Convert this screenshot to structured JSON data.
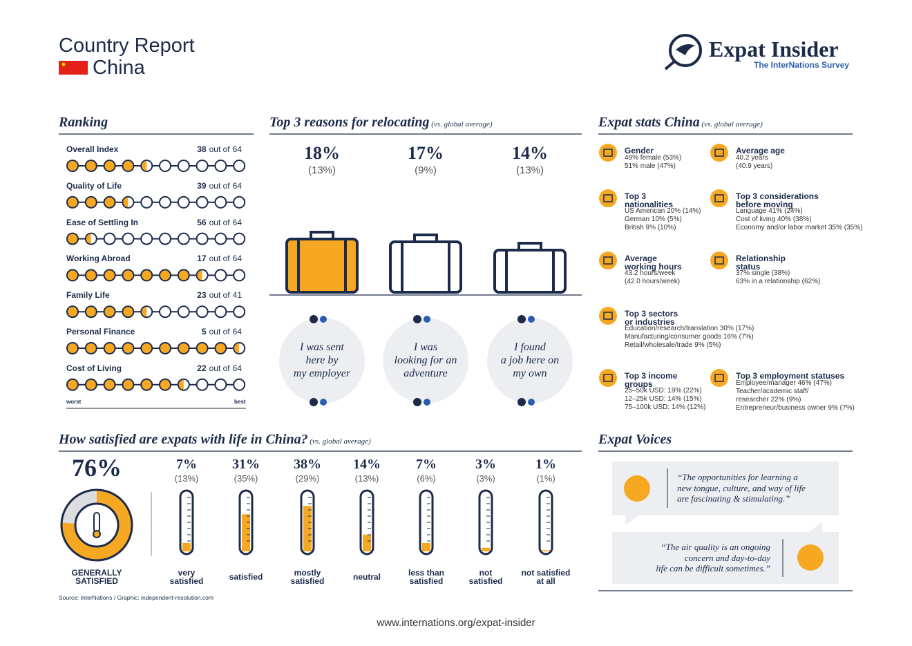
{
  "header": {
    "title": "Country Report",
    "country": "China",
    "brand": "Expat Insider",
    "tagline": "The InterNations Survey"
  },
  "ranking": {
    "heading": "Ranking",
    "of_label": "out of",
    "worst": "worst",
    "best": "best",
    "items": [
      {
        "label": "Overall Index",
        "rank": 38,
        "total": 64
      },
      {
        "label": "Quality of Life",
        "rank": 39,
        "total": 64
      },
      {
        "label": "Ease of Settling In",
        "rank": 56,
        "total": 64
      },
      {
        "label": "Working Abroad",
        "rank": 17,
        "total": 64
      },
      {
        "label": "Family Life",
        "rank": 23,
        "total": 41
      },
      {
        "label": "Personal Finance",
        "rank": 5,
        "total": 64
      },
      {
        "label": "Cost of Living",
        "rank": 22,
        "total": 64
      }
    ]
  },
  "reasons": {
    "heading": "Top 3 reasons for relocating",
    "note": "(vs. global average)",
    "items": [
      {
        "value": "18%",
        "global": "(13%)",
        "quote": [
          "I was sent",
          "here by",
          "my employer"
        ]
      },
      {
        "value": "17%",
        "global": "(9%)",
        "quote": [
          "I was",
          "looking for an",
          "adventure"
        ]
      },
      {
        "value": "14%",
        "global": "(13%)",
        "quote": [
          "I found",
          "a job here on",
          "my own"
        ]
      }
    ]
  },
  "stats": {
    "heading": "Expat stats China",
    "note": "(vs. global average)",
    "items": [
      {
        "title": [
          "Gender"
        ],
        "lines": [
          "49% female (53%)",
          "51% male (47%)"
        ]
      },
      {
        "title": [
          "Average age"
        ],
        "lines": [
          "40.2 years",
          "(40.9 years)"
        ]
      },
      {
        "title": [
          "Top 3",
          "nationalities"
        ],
        "lines": [
          "US American 20% (14%)",
          "German 10% (5%)",
          "British 9% (10%)"
        ]
      },
      {
        "title": [
          "Top 3 considerations",
          "before moving"
        ],
        "lines": [
          "Language 41% (24%)",
          "Cost of living 40% (38%)",
          "Economy and/or labor market 35% (35%)"
        ]
      },
      {
        "title": [
          "Average",
          "working hours"
        ],
        "lines": [
          "43.2 hours/week",
          "(42.0 hours/week)"
        ]
      },
      {
        "title": [
          "Relationship",
          "status"
        ],
        "lines": [
          "37% single (38%)",
          "63% in a relationship (62%)"
        ]
      },
      {
        "title": [
          "Top 3 sectors",
          "or industries"
        ],
        "lines": [
          "Education/research/translation 30% (17%)",
          "Manufacturing/consumer goods 16% (7%)",
          "Retail/wholesale/trade 9% (5%)"
        ]
      },
      {
        "title": [
          "Top 3 income",
          "groups"
        ],
        "lines": [
          "25–50k USD: 19% (22%)",
          "12–25k USD: 14% (15%)",
          "75–100k USD: 14% (12%)"
        ]
      },
      {
        "title": [
          "Top 3 employment statuses"
        ],
        "lines": [
          "Employee/manager 46% (47%)",
          "Teacher/academic staff/",
          "researcher 22% (9%)",
          "Entrepreneur/business owner 9% (7%)"
        ]
      }
    ]
  },
  "satisfaction": {
    "heading": "How satisfied are expats with life in China?",
    "note": "(vs. global average)",
    "overall": {
      "value": 76,
      "label": "76%",
      "caption": [
        "GENERALLY",
        "SATISFIED"
      ]
    },
    "categories": [
      [
        "very",
        "satisfied"
      ],
      [
        "satisfied"
      ],
      [
        "mostly",
        "satisfied"
      ],
      [
        "neutral"
      ],
      [
        "less than",
        "satisfied"
      ],
      [
        "not",
        "satisfied"
      ],
      [
        "not satisfied",
        "at all"
      ]
    ],
    "values": [
      7,
      31,
      38,
      14,
      7,
      3,
      1
    ],
    "value_labels": [
      "7%",
      "31%",
      "38%",
      "14%",
      "7%",
      "3%",
      "1%"
    ],
    "global_labels": [
      "(13%)",
      "(35%)",
      "(29%)",
      "(13%)",
      "(6%)",
      "(3%)",
      "(1%)"
    ]
  },
  "voices": {
    "heading": "Expat Voices",
    "quotes": [
      [
        "“The opportunities for learning a",
        "new tongue, culture, and way of life",
        "are fascinating & stimulating.”"
      ],
      [
        "“The air quality is an ongoing",
        "concern and day-to-day",
        "life can be difficult sometimes.”"
      ]
    ]
  },
  "footer": {
    "source": "Source: InterNations / Graphic: independent-resolution.com",
    "url": "www.internations.org/expat-insider"
  }
}
